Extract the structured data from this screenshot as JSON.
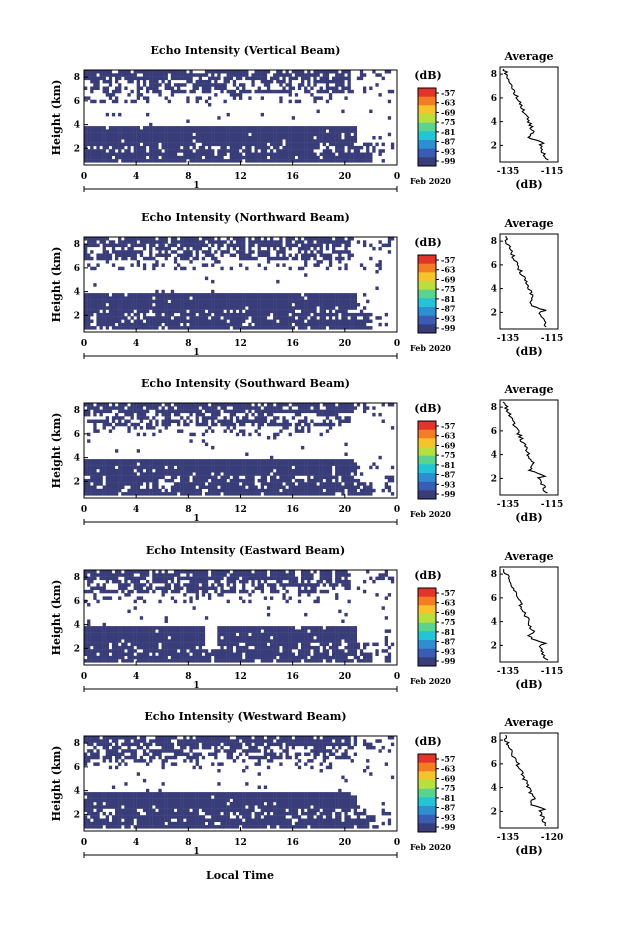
{
  "chart_data": {
    "type": "heatmap",
    "common": {
      "x_ticks": [
        "0",
        "4",
        "8",
        "12",
        "16",
        "20",
        "0"
      ],
      "y_ticks": [
        "2",
        "4",
        "6",
        "8"
      ],
      "ylabel": "Height (km)",
      "date_day": "1",
      "date_label": "Feb 2020",
      "colorbar_unit": "(dB)",
      "colorbar_ticks": [
        "-57",
        "-63",
        "-69",
        "-75",
        "-81",
        "-87",
        "-93",
        "-99"
      ],
      "xlabel_bottom": "Local Time",
      "side_title": "Average",
      "side_xlabel": "(dB)"
    },
    "panels": [
      {
        "title": "Echo Intensity (Vertical Beam)",
        "side_xticks": [
          "-135",
          "-115"
        ]
      },
      {
        "title": "Echo Intensity (Northward Beam)",
        "side_xticks": [
          "-135",
          "-115"
        ]
      },
      {
        "title": "Echo Intensity (Southward Beam)",
        "side_xticks": [
          "-135",
          "-115"
        ]
      },
      {
        "title": "Echo Intensity (Eastward Beam)",
        "side_xticks": [
          "-135",
          "-115"
        ]
      },
      {
        "title": "Echo Intensity (Westward Beam)",
        "side_xticks": [
          "-135",
          "-120"
        ]
      }
    ],
    "colors": [
      "#383c78",
      "#3a5cb4",
      "#2d8fd2",
      "#22c4d6",
      "#5ad38f",
      "#b6df3f",
      "#f7c32a",
      "#f47c22",
      "#e3342a"
    ]
  }
}
